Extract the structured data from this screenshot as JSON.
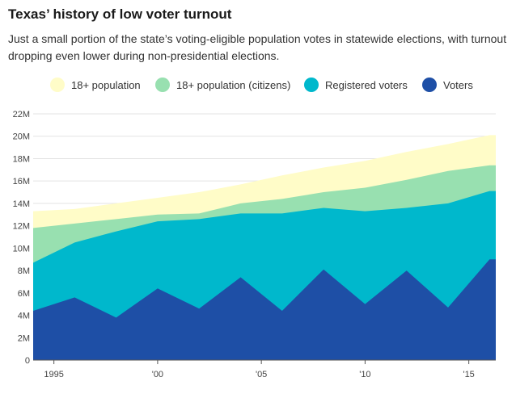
{
  "header": {
    "title": "Texas’ history of low voter turnout",
    "subtitle": "Just a small portion of the state’s voting-eligible population votes in statewide elections, with turnout dropping even lower during non-presidential elections."
  },
  "chart_data": {
    "type": "area",
    "title": "Texas’ history of low voter turnout",
    "xlabel": "",
    "ylabel": "",
    "x": [
      1994,
      1996,
      1998,
      2000,
      2002,
      2004,
      2006,
      2008,
      2010,
      2012,
      2014,
      2016
    ],
    "xlim": [
      1994,
      2016.3
    ],
    "ylim": [
      0,
      22
    ],
    "y_ticks": [
      0,
      2,
      4,
      6,
      8,
      10,
      12,
      14,
      16,
      18,
      20,
      22
    ],
    "y_tick_labels": [
      "0",
      "2M",
      "4M",
      "6M",
      "8M",
      "10M",
      "12M",
      "14M",
      "16M",
      "18M",
      "20M",
      "22M"
    ],
    "x_ticks": [
      1995,
      2000,
      2005,
      2010,
      2015
    ],
    "x_tick_labels": [
      "1995",
      "'00",
      "'05",
      "'10",
      "'15"
    ],
    "grid": true,
    "legend_position": "top",
    "series": [
      {
        "name": "18+ population",
        "color": "#fffcc8",
        "values": [
          13.3,
          13.5,
          14.0,
          14.5,
          15.0,
          15.7,
          16.5,
          17.2,
          17.8,
          18.6,
          19.3,
          20.1
        ]
      },
      {
        "name": "18+ population (citizens)",
        "color": "#98e0b0",
        "values": [
          11.8,
          12.2,
          12.6,
          13.0,
          13.1,
          14.0,
          14.4,
          15.0,
          15.4,
          16.1,
          16.9,
          17.4
        ]
      },
      {
        "name": "Registered voters",
        "color": "#00b8cc",
        "values": [
          8.7,
          10.5,
          11.5,
          12.4,
          12.6,
          13.1,
          13.1,
          13.6,
          13.3,
          13.6,
          14.0,
          15.1
        ]
      },
      {
        "name": "Voters",
        "color": "#1e4fa6",
        "values": [
          4.4,
          5.6,
          3.8,
          6.4,
          4.6,
          7.4,
          4.4,
          8.1,
          5.0,
          8.0,
          4.7,
          9.0
        ]
      }
    ]
  }
}
